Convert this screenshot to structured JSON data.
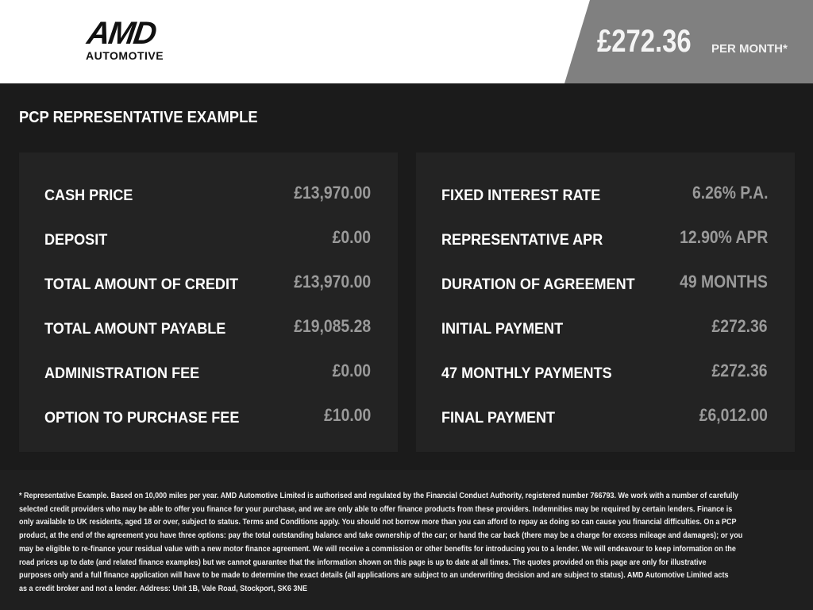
{
  "header": {
    "logo_top": "AMD",
    "logo_bottom": "AUTOMOTIVE",
    "price": "£272.36",
    "price_suffix": "PER MONTH*"
  },
  "section_title": "PCP REPRESENTATIVE EXAMPLE",
  "left_panel": [
    {
      "label": "CASH PRICE",
      "value": "£13,970.00"
    },
    {
      "label": "DEPOSIT",
      "value": "£0.00"
    },
    {
      "label": "TOTAL AMOUNT OF CREDIT",
      "value": "£13,970.00"
    },
    {
      "label": "TOTAL AMOUNT PAYABLE",
      "value": "£19,085.28"
    },
    {
      "label": "ADMINISTRATION FEE",
      "value": "£0.00"
    },
    {
      "label": "OPTION TO PURCHASE FEE",
      "value": "£10.00"
    }
  ],
  "right_panel": [
    {
      "label": "FIXED INTEREST RATE",
      "value": "6.26% P.A."
    },
    {
      "label": "REPRESENTATIVE APR",
      "value": "12.90% APR"
    },
    {
      "label": "DURATION OF AGREEMENT",
      "value": "49 MONTHS"
    },
    {
      "label": "INITIAL PAYMENT",
      "value": "£272.36"
    },
    {
      "label": "47 MONTHLY PAYMENTS",
      "value": "£272.36"
    },
    {
      "label": "FINAL PAYMENT",
      "value": "£6,012.00"
    }
  ],
  "disclaimer_lines": [
    "* Representative Example. Based on 10,000 miles per year. AMD Automotive Limited is authorised and regulated by the Financial Conduct Authority, registered number 766793. We work with a number of carefully",
    "selected credit providers who may be able to offer you finance for your purchase, and we are only able to offer finance products from these providers. Indemnities may be required by certain lenders. Finance is",
    "only available to UK residents, aged 18 or over, subject to status. Terms and Conditions apply. You should not borrow more than you can afford to repay as doing so can cause you financial difficulties. On a PCP",
    "product, at the end of the agreement you have three options: pay the total outstanding balance and take ownership of the car; or hand the car back (there may be a charge for excess mileage and damages); or you",
    "may be eligible to re-finance your residual value with a new motor finance agreement. We will receive a commission or other benefits for introducing you to a lender. We will endeavour to keep information on the",
    "road prices up to date (and related finance examples) but we cannot guarantee that the information shown on this page is up to date at all times. The quotes provided on this page are only for illustrative",
    "purposes only and a full finance application will have to be made to determine the exact details (all applications are subject to an underwriting decision and are subject to status). AMD Automotive Limited acts",
    "as a credit broker and not a lender. Address: Unit 1B, Vale Road, Stockport, SK6 3NE"
  ]
}
